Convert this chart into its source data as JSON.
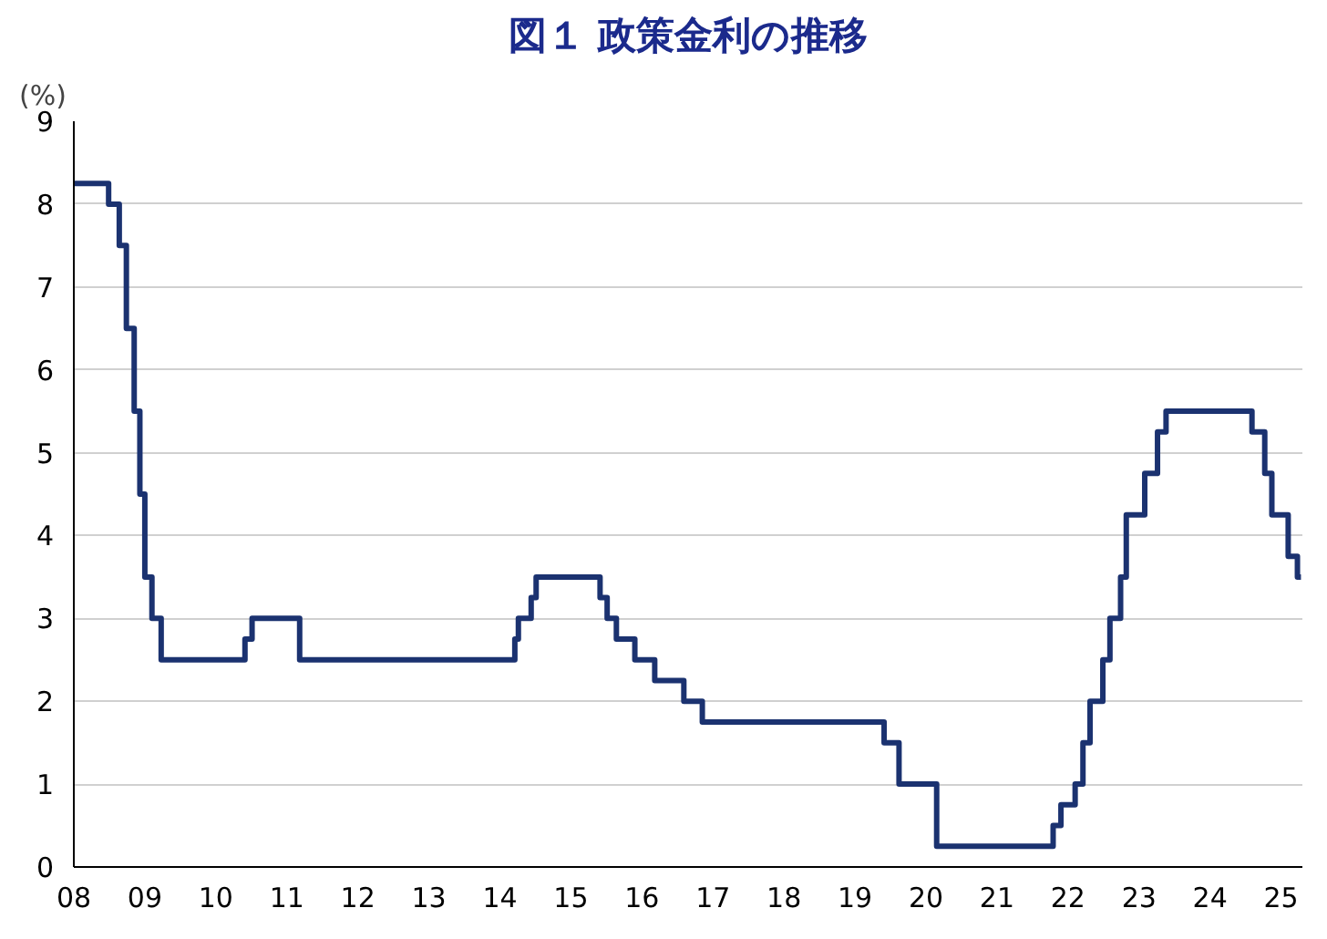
{
  "chart_data": {
    "type": "step",
    "title": "図１ 政策金利の推移",
    "ylabel": "(%)",
    "x": [
      2008.0,
      2008.49,
      2008.64,
      2008.74,
      2008.85,
      2008.93,
      2009.0,
      2009.1,
      2009.23,
      2010.41,
      2010.51,
      2011.18,
      2014.21,
      2014.26,
      2014.44,
      2014.51,
      2015.41,
      2015.51,
      2015.64,
      2015.9,
      2016.18,
      2016.59,
      2016.85,
      2019.41,
      2019.62,
      2020.15,
      2021.79,
      2021.9,
      2022.1,
      2022.21,
      2022.31,
      2022.49,
      2022.59,
      2022.74,
      2022.82,
      2023.08,
      2023.26,
      2023.38,
      2024.59,
      2024.77,
      2024.87,
      2025.1,
      2025.23,
      2025.28
    ],
    "series": [
      {
        "color": "#1b3270",
        "values": [
          8.25,
          8.0,
          7.5,
          6.5,
          5.5,
          4.5,
          3.5,
          3.0,
          2.5,
          2.75,
          3.0,
          2.5,
          2.75,
          3.0,
          3.25,
          3.5,
          3.25,
          3.0,
          2.75,
          2.5,
          2.25,
          2.0,
          1.75,
          1.5,
          1.0,
          0.25,
          0.5,
          0.75,
          1.0,
          1.5,
          2.0,
          2.5,
          3.0,
          3.5,
          4.25,
          4.75,
          5.25,
          5.5,
          5.25,
          4.75,
          4.25,
          3.75,
          3.5,
          3.5
        ]
      }
    ],
    "xlim": [
      2008,
      2025.3
    ],
    "xticks": [
      {
        "value": 2008,
        "label": "08"
      },
      {
        "value": 2009,
        "label": "09"
      },
      {
        "value": 2010,
        "label": "10"
      },
      {
        "value": 2011,
        "label": "11"
      },
      {
        "value": 2012,
        "label": "12"
      },
      {
        "value": 2013,
        "label": "13"
      },
      {
        "value": 2014,
        "label": "14"
      },
      {
        "value": 2015,
        "label": "15"
      },
      {
        "value": 2016,
        "label": "16"
      },
      {
        "value": 2017,
        "label": "17"
      },
      {
        "value": 2018,
        "label": "18"
      },
      {
        "value": 2019,
        "label": "19"
      },
      {
        "value": 2020,
        "label": "20"
      },
      {
        "value": 2021,
        "label": "21"
      },
      {
        "value": 2022,
        "label": "22"
      },
      {
        "value": 2023,
        "label": "23"
      },
      {
        "value": 2024,
        "label": "24"
      },
      {
        "value": 2025,
        "label": "25"
      }
    ],
    "ylim": [
      0,
      9
    ],
    "yticks": [
      0,
      1,
      2,
      3,
      4,
      5,
      6,
      7,
      8,
      9
    ],
    "grid": "y"
  }
}
